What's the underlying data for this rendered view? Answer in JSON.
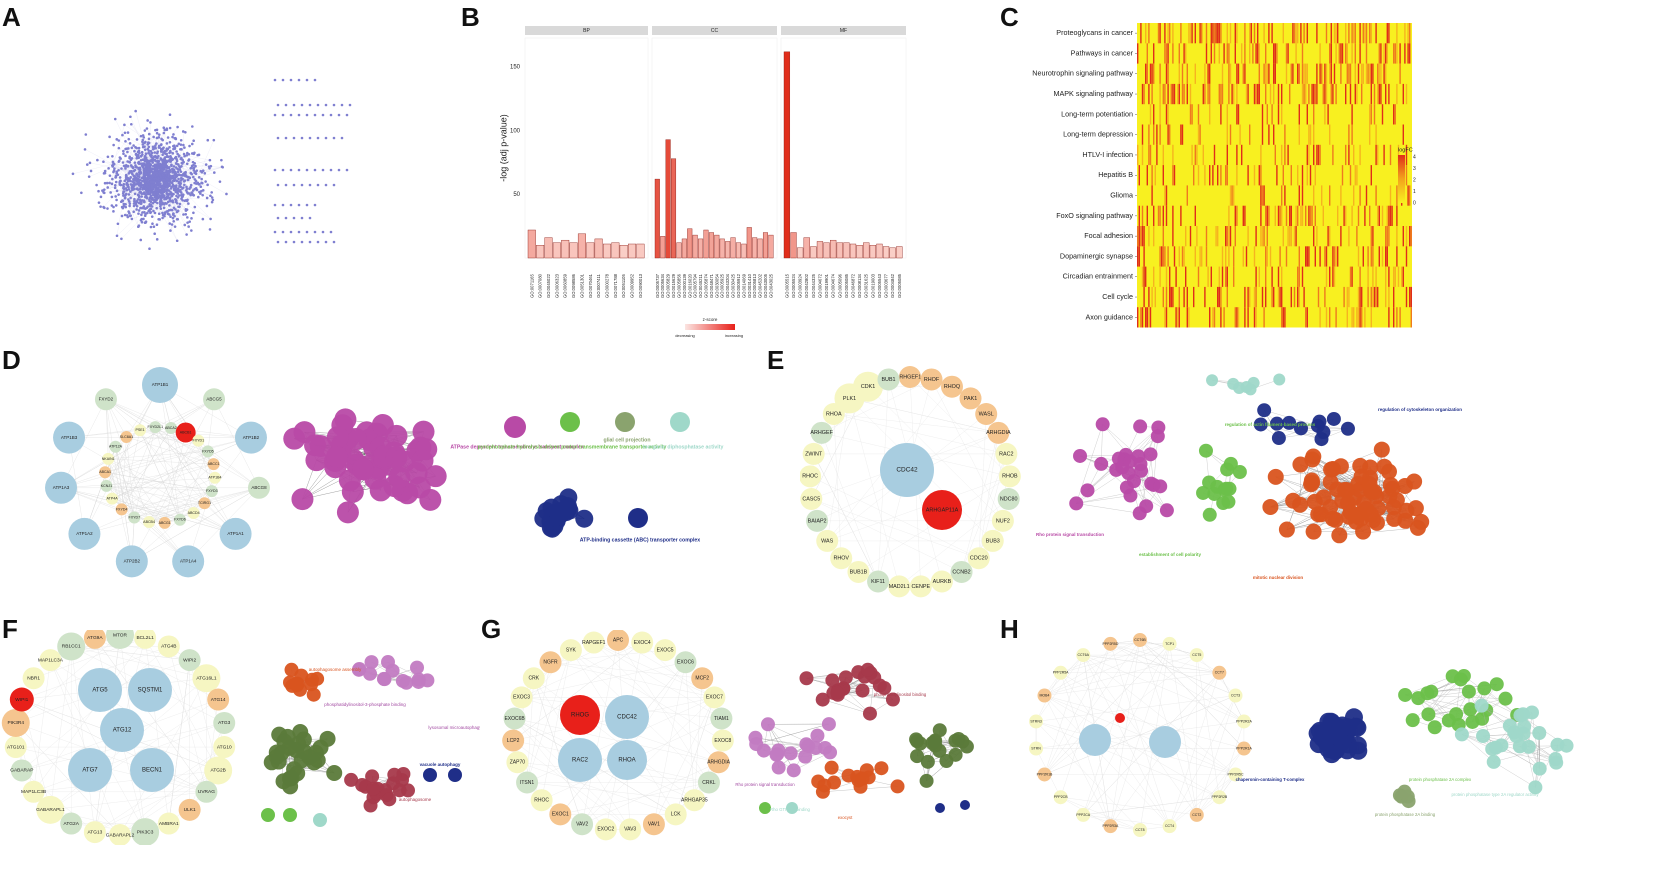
{
  "figure": {
    "panel_labels": [
      "A",
      "B",
      "C",
      "D",
      "E",
      "F",
      "G",
      "H"
    ],
    "colors": {
      "network_node": "#7f7fd0",
      "hub_red": "#e8201a",
      "light_blue": "#a8cde0",
      "pale_yellow": "#f6f6c2",
      "pale_green": "#cfe3c9",
      "orange_light": "#f5c58f",
      "magenta": "#b84aa6",
      "navy": "#1f2e88",
      "green": "#6cc04a",
      "olive": "#8aa36e",
      "teal": "#9fd8c9",
      "orange_red": "#d9541f",
      "dark_olive": "#5b7a3a",
      "maroon": "#a6394b",
      "heat_low": "#f8f020",
      "heat_high": "#e02d1a"
    }
  },
  "chart_data": [
    {
      "panel": "B",
      "type": "bar",
      "ylabel": "-log (adj p-value)",
      "ylim": [
        0,
        165
      ],
      "yticks": [
        50,
        100,
        150
      ],
      "facets": [
        "BP",
        "CC",
        "MF"
      ],
      "legend_title": "z-score",
      "legend_labels": [
        "decreasing",
        "increasing"
      ],
      "series": [
        {
          "facet": "BP",
          "categories": [
            "GO:0071165",
            "GO:0007080",
            "GO:0045022",
            "GO:0006323",
            "GO:0060859",
            "GO:0098586",
            "GO:0051301",
            "GO:0070461",
            "GO:0007411",
            "GO:0000278",
            "GO:0071788",
            "GO:0051105",
            "GO:0009952",
            "GO:0090013"
          ],
          "values": [
            22,
            10,
            16,
            12,
            14,
            12,
            19,
            12,
            15,
            11,
            12,
            10,
            11,
            11
          ],
          "zscore": [
            0.35,
            0.2,
            0.25,
            0.2,
            0.22,
            0.2,
            0.3,
            0.2,
            0.25,
            0.18,
            0.2,
            0.15,
            0.18,
            0.18
          ]
        },
        {
          "facet": "CC",
          "categories": [
            "GO:0005737",
            "GO:0005634",
            "GO:0005829",
            "GO:0015629",
            "GO:0005856",
            "GO:0000139",
            "GO:0016020",
            "GO:0005794",
            "GO:0045211",
            "GO:0005874",
            "GO:0048471",
            "GO:0030054",
            "GO:0005925",
            "GO:0043204",
            "GO:0030425",
            "GO:0005912",
            "GO:0014069",
            "GO:0031410",
            "GO:0005813",
            "GO:0045202",
            "GO:0043005",
            "GO:0043025"
          ],
          "values": [
            62,
            17,
            93,
            78,
            12,
            15,
            23,
            18,
            15,
            22,
            20,
            18,
            15,
            13,
            16,
            12,
            11,
            24,
            16,
            15,
            20,
            18
          ],
          "zscore": [
            0.8,
            0.4,
            0.85,
            0.7,
            0.3,
            0.35,
            0.45,
            0.35,
            0.3,
            0.4,
            0.38,
            0.35,
            0.3,
            0.28,
            0.32,
            0.26,
            0.24,
            0.45,
            0.3,
            0.3,
            0.4,
            0.35
          ]
        },
        {
          "facet": "MF",
          "categories": [
            "GO:0005515",
            "GO:0005524",
            "GO:0003924",
            "GO:0042802",
            "GO:0044325",
            "GO:0004672",
            "GO:0019901",
            "GO:0004674",
            "GO:0005096",
            "GO:0005085",
            "GO:0046872",
            "GO:0008134",
            "GO:0031625",
            "GO:0019003",
            "GO:0005543",
            "GO:0003677",
            "GO:0004842",
            "GO:0005085"
          ],
          "values": [
            162,
            20,
            8,
            16,
            9,
            13,
            12,
            14,
            12,
            12,
            11,
            10,
            12,
            10,
            11,
            9,
            8,
            9
          ],
          "zscore": [
            1.0,
            0.45,
            0.15,
            0.3,
            0.18,
            0.25,
            0.22,
            0.25,
            0.22,
            0.22,
            0.2,
            0.18,
            0.22,
            0.18,
            0.2,
            0.16,
            0.15,
            0.16
          ]
        }
      ]
    },
    {
      "panel": "C",
      "type": "heatmap",
      "rows": [
        "Proteoglycans in cancer",
        "Pathways in cancer",
        "Neurotrophin signaling pathway",
        "MAPK signaling pathway",
        "Long-term potentiation",
        "Long-term depression",
        "HTLV-I infection",
        "Hepatitis B",
        "Glioma",
        "FoxO signaling pathway",
        "Focal adhesion",
        "Dopaminergic synapse",
        "Circadian entrainment",
        "Cell cycle",
        "Axon guidance"
      ],
      "legend_title": "logFC",
      "legend_ticks": [
        "4",
        "3",
        "2",
        "1",
        "0"
      ]
    },
    {
      "panel": "D",
      "type": "network",
      "hub_nodes": [
        "ATP1B1",
        "ABCG5",
        "ATP1B2",
        "ABCG8",
        "ATP1A1",
        "ATP1A4",
        "ATP2B2",
        "ATP1A2",
        "ATP1A3",
        "ATP1B3",
        "FXYD2"
      ],
      "inner_nodes": [
        "ABCA2",
        "ABCB1",
        "FXYD1",
        "FXYD5",
        "ABCC1",
        "ATP1B4",
        "FXYD3",
        "TCIRG1",
        "ABCD4",
        "FXYD6",
        "ABCG1",
        "ABCB4",
        "FXYD7",
        "FXYD4",
        "ATP4A",
        "KCNJ1",
        "ABCA1",
        "NKAIN1",
        "ATP12A",
        "SLC8A1",
        "PSE1",
        "FXYD2L1"
      ],
      "red_node": "ABCB1",
      "annotations": [
        "ATPase dependent transmembrane transport complex",
        "pyrophosphate hydrolysis-driven proton transmembrane transporter activity",
        "glial cell projection",
        "inorganic diphosphatase activity",
        "ATP-binding cassette (ABC) transporter complex"
      ]
    },
    {
      "panel": "E",
      "type": "network",
      "ring_nodes": [
        "ARHGEF12",
        "RHOF",
        "RHOQ",
        "PAK1",
        "WASL",
        "ARHGDIA",
        "RAC2",
        "RHOB",
        "NDC80",
        "NUF2",
        "BUB3",
        "CDC20",
        "CCNB2",
        "AURKB",
        "CENPE",
        "MAD2L1",
        "KIF11",
        "BUB1B",
        "RHOV",
        "WAS",
        "BAIAP2",
        "CASC5",
        "RHOC",
        "ZWINT",
        "ARHGEF",
        "RHOA",
        "PLK1",
        "CDK1",
        "BUB1"
      ],
      "hub_nodes": [
        "CDC42",
        "ARHGAP11A"
      ],
      "annotations": [
        "regulation of cytoskeleton organization",
        "Rho protein signal transduction",
        "establishment of cell polarity",
        "mitotic nuclear division",
        "regulation of actin filament-based process"
      ]
    },
    {
      "panel": "F",
      "type": "network",
      "nodes": [
        "MTOR",
        "BCL2L1",
        "ATG4B",
        "WIPI2",
        "ATG16L1",
        "ATG14",
        "ATG3",
        "ATG10",
        "ATG2B",
        "UVRAG",
        "SQSTM1",
        "ULK1",
        "AMBRA1",
        "PIK3C3",
        "ATG5",
        "GABARAPL2",
        "ATG13",
        "ATG2A",
        "GABARAPL1",
        "ATG12",
        "ATG7",
        "BECN1",
        "MAP1LC3B",
        "GABARAP",
        "ATG101",
        "PIK3R4",
        "WIPI1",
        "NBR1",
        "MAP1LC3A",
        "RB1CC1",
        "ATG9A"
      ],
      "big_nodes": [
        "ATG5",
        "SQSTM1",
        "ATG12",
        "ATG7",
        "BECN1"
      ],
      "red_node": "WIPI1",
      "annotations": [
        "autophagosome assembly",
        "phosphatidylinositol-3-phosphate binding",
        "lysosomal microautophagy",
        "vacuole autophagy",
        "autophagosome"
      ]
    },
    {
      "panel": "G",
      "type": "network",
      "nodes": [
        "APC",
        "EXOC4",
        "EXOC5",
        "EXOC6",
        "MCF2",
        "EXOC7",
        "TIAM1",
        "EXOC8",
        "ARHGDIA",
        "CRKL",
        "ARHGAP35",
        "LCK",
        "VAV1",
        "VAV3",
        "EXOC2",
        "VAV2",
        "EXOC1",
        "RHOC",
        "ITSN1",
        "ZAP70",
        "LCP2",
        "EXOC6B",
        "EXOC3",
        "CRK",
        "NGFR",
        "SYK",
        "RAPGEF1"
      ],
      "big_nodes": [
        "RHOG",
        "CDC42",
        "RAC2",
        "RHOA"
      ],
      "red_node": "RHOG",
      "annotations": [
        "phosphatidylinositol binding",
        "Rho GTPase binding",
        "exocyst",
        "Rho protein signal transduction"
      ]
    },
    {
      "panel": "H",
      "type": "network",
      "nodes": [
        "CCT6B",
        "TCP1",
        "CCT5",
        "CCT7",
        "CCT3",
        "PPP2R2A",
        "PPP2R1A",
        "PPP2R5C",
        "PPP2R2B",
        "CCT2",
        "CCT4",
        "CCT8",
        "PPP2R3A",
        "PPP2CA",
        "PPP2CB",
        "PPP2R1B",
        "STRN",
        "STRN3",
        "MOB4",
        "PPP2R5A",
        "CCT6A",
        "PPP2R5D"
      ],
      "annotations": [
        "chaperonin-containing T-complex",
        "protein phosphatase 2A complex",
        "protein phosphatase type 2A regulator activity",
        "protein phosphatase 2A binding"
      ]
    }
  ]
}
